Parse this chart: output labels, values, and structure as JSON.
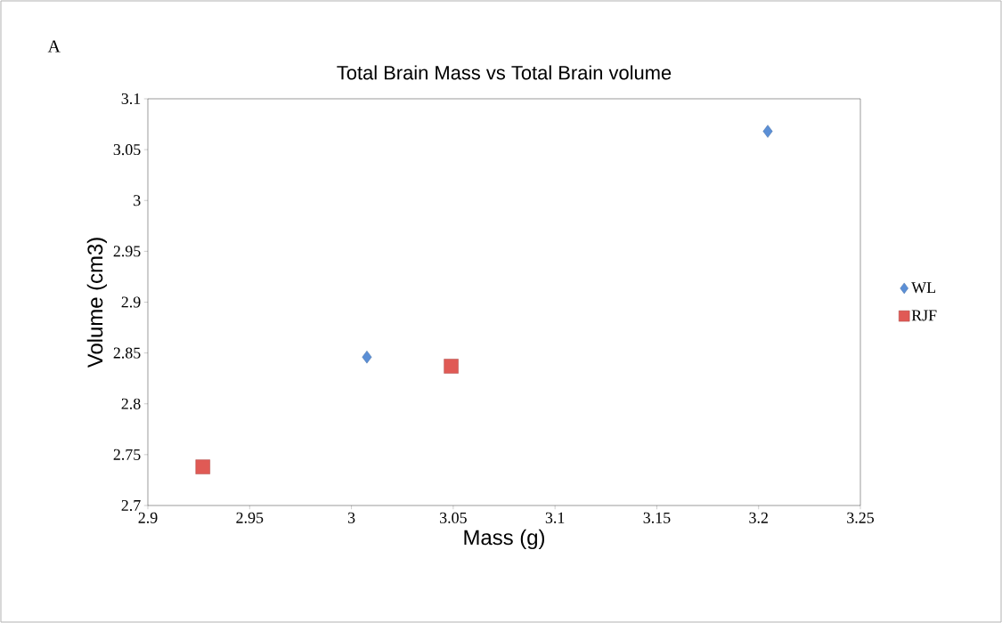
{
  "chart_data": {
    "type": "scatter",
    "title": "Total Brain Mass vs Total Brain volume",
    "xlabel": "Mass (g)",
    "ylabel": "Volume (cm3)",
    "annotations": [
      "A"
    ],
    "series": [
      {
        "name": "WL",
        "color": "#5b8fd6",
        "marker": "diamond",
        "x": [
          3.0076,
          3.2045
        ],
        "values": [
          2.846,
          3.068
        ]
      },
      {
        "name": "RJF",
        "color": "#e05a55",
        "marker": "square",
        "x": [
          2.927,
          3.049
        ],
        "values": [
          2.738,
          2.837
        ]
      }
    ],
    "xlim": [
      2.9,
      3.25
    ],
    "ylim": [
      2.7,
      3.1
    ],
    "xticks": [
      2.9,
      2.95,
      3,
      3.05,
      3.1,
      3.15,
      3.2,
      3.25
    ],
    "yticks": [
      2.7,
      2.75,
      2.8,
      2.85,
      2.9,
      2.95,
      3,
      3.05,
      3.1
    ],
    "grid": false,
    "legend": "right"
  }
}
